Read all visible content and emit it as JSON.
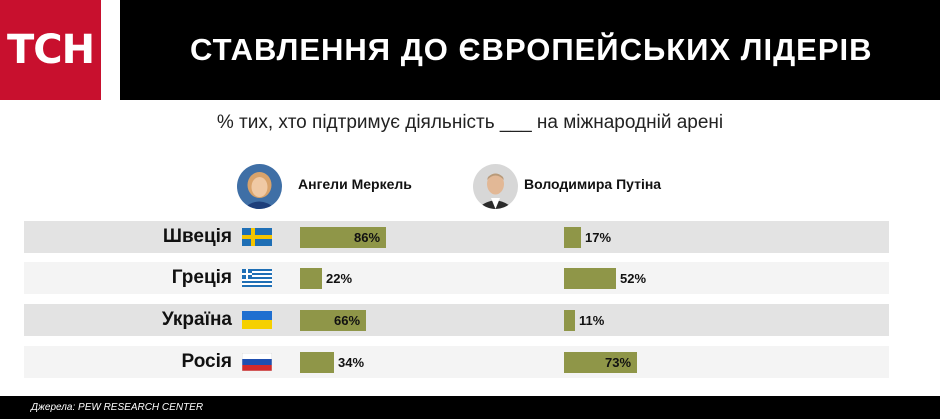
{
  "brand": {
    "logo_text": "ТСН",
    "logo_color": "#c8102e"
  },
  "header": {
    "title": "СТАВЛЕННЯ ДО ЄВРОПЕЙСЬКИХ ЛІДЕРІВ"
  },
  "subtitle": "% тих, хто підтримує діяльність ___ на міжнародній арені",
  "leaders": [
    {
      "name": "Ангели Меркель",
      "avatar_icon": "merkel-portrait-icon"
    },
    {
      "name": "Володимира Путіна",
      "avatar_icon": "putin-portrait-icon"
    }
  ],
  "colors": {
    "bar": "#8f9648",
    "row_dark": "#e3e3e3",
    "row_light": "#f4f4f4"
  },
  "chart_data": {
    "type": "bar",
    "orientation": "horizontal",
    "title": "СТАВЛЕННЯ ДО ЄВРОПЕЙСЬКИХ ЛІДЕРІВ",
    "subtitle": "% тих, хто підтримує діяльність ___ на міжнародній арені",
    "categories": [
      "Швеція",
      "Греція",
      "Україна",
      "Росія"
    ],
    "flags": [
      "sweden-flag-icon",
      "greece-flag-icon",
      "ukraine-flag-icon",
      "russia-flag-icon"
    ],
    "series": [
      {
        "name": "Ангели Меркель",
        "values": [
          86,
          22,
          66,
          34
        ],
        "labels": [
          "86%",
          "22%",
          "66%",
          "34%"
        ]
      },
      {
        "name": "Володимира Путіна",
        "values": [
          17,
          52,
          11,
          73
        ],
        "labels": [
          "17%",
          "52%",
          "11%",
          "73%"
        ]
      }
    ],
    "xlim": [
      0,
      100
    ],
    "legend": "top"
  },
  "footer": {
    "source": "Джерела: PEW RESEARCH CENTER"
  }
}
